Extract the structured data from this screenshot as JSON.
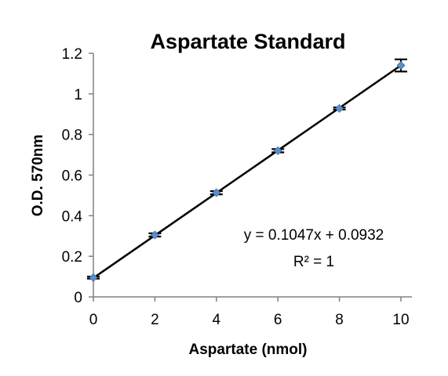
{
  "chart_data": {
    "type": "scatter",
    "title": "Aspartate Standard",
    "xlabel": "Aspartate (nmol)",
    "ylabel": "O.D. 570nm",
    "xlim": [
      0,
      10
    ],
    "ylim": [
      0,
      1.2
    ],
    "x_ticks": [
      "0",
      "2",
      "4",
      "6",
      "8",
      "10"
    ],
    "y_ticks": [
      "0",
      "0.2",
      "0.4",
      "0.6",
      "0.8",
      "1",
      "1.2"
    ],
    "x_tick_values": [
      0,
      2,
      4,
      6,
      8,
      10
    ],
    "y_tick_values": [
      0,
      0.2,
      0.4,
      0.6,
      0.8,
      1.0,
      1.2
    ],
    "points": [
      {
        "x": 0,
        "y": 0.095,
        "err": 0.005
      },
      {
        "x": 2,
        "y": 0.305,
        "err": 0.008
      },
      {
        "x": 4,
        "y": 0.513,
        "err": 0.008
      },
      {
        "x": 6,
        "y": 0.72,
        "err": 0.008
      },
      {
        "x": 8,
        "y": 0.928,
        "err": 0.005
      },
      {
        "x": 10,
        "y": 1.14,
        "err": 0.03
      }
    ],
    "trendline": {
      "slope": 0.1047,
      "intercept": 0.0932
    },
    "equation": "y = 0.1047x + 0.0932",
    "r_squared": "R² = 1",
    "grid": false,
    "legend": "none",
    "colors": {
      "marker": "#5b8fc9",
      "trendline": "#000000",
      "axis": "#808080"
    }
  }
}
